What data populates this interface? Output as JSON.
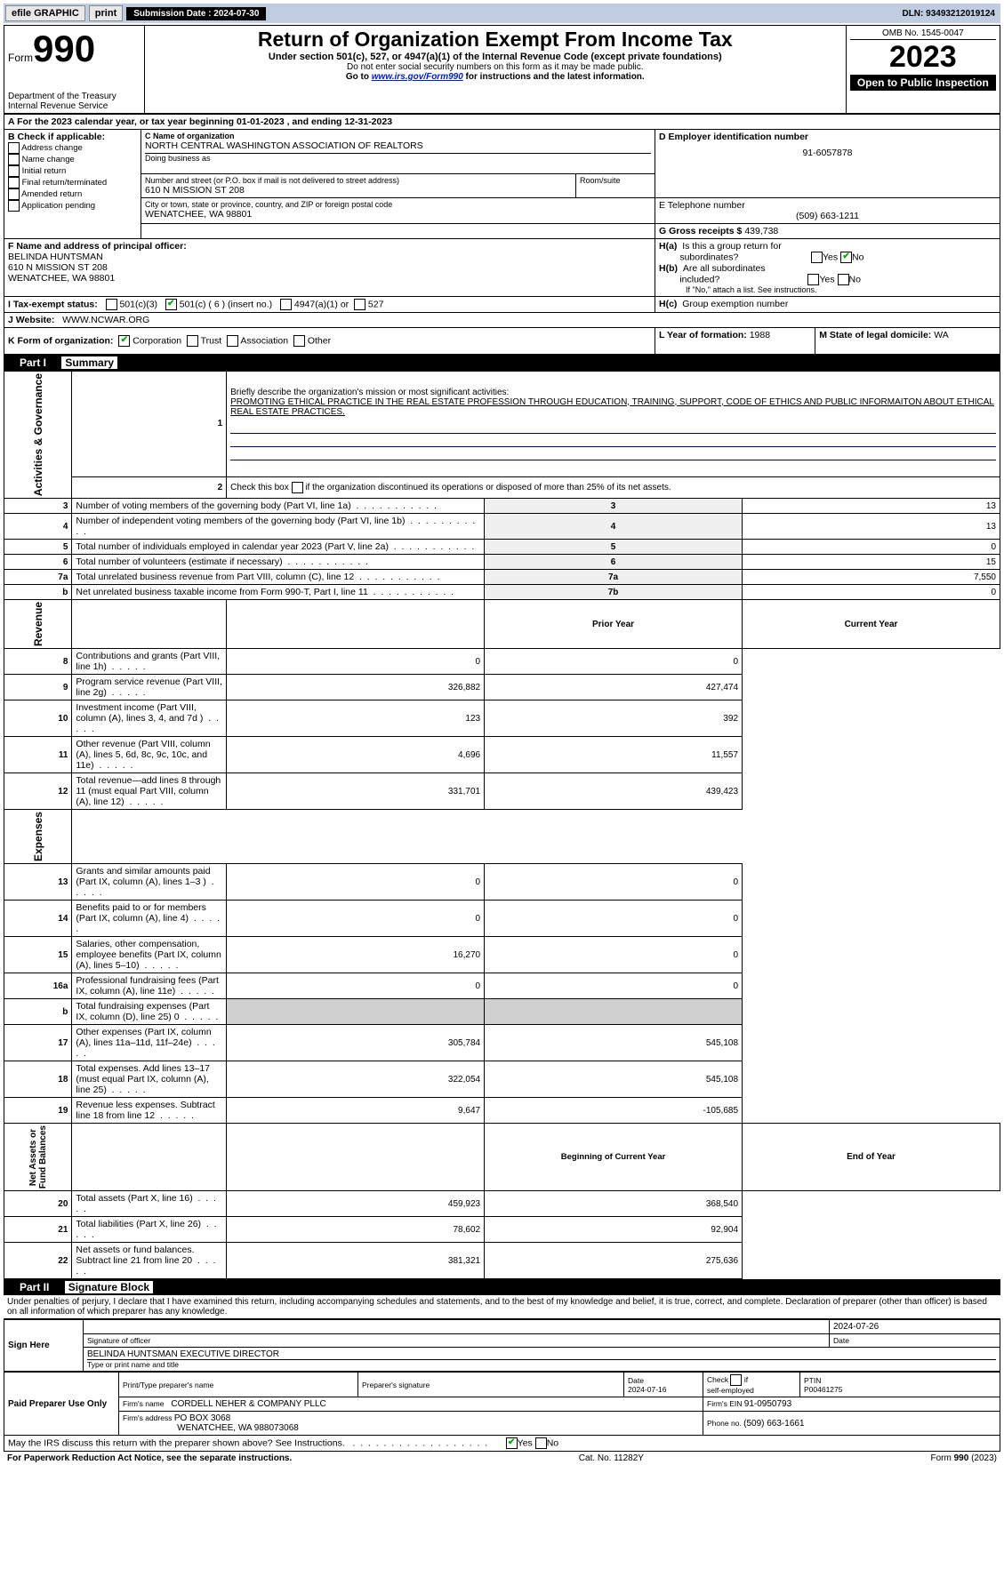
{
  "topbar": {
    "efile": "efile GRAPHIC",
    "print": "print",
    "sub_label": "Submission Date : 2024-07-30",
    "dln": "DLN: 93493212019124"
  },
  "header": {
    "form_small": "Form",
    "form_num": "990",
    "title": "Return of Organization Exempt From Income Tax",
    "subtitle": "Under section 501(c), 527, or 4947(a)(1) of the Internal Revenue Code (except private foundations)",
    "warn": "Do not enter social security numbers on this form as it may be made public.",
    "goto_pre": "Go to ",
    "goto_link": "www.irs.gov/Form990",
    "goto_post": " for instructions and the latest information.",
    "dept": "Department of the Treasury\nInternal Revenue Service",
    "omb": "OMB No. 1545-0047",
    "year": "2023",
    "inspect": "Open to Public Inspection"
  },
  "period": {
    "text": "A For the 2023 calendar year, or tax year beginning 01-01-2023    , and ending 12-31-2023"
  },
  "boxB": {
    "label": "B Check if applicable:",
    "items": [
      "Address change",
      "Name change",
      "Initial return",
      "Final return/terminated",
      "Amended return",
      "Application pending"
    ]
  },
  "boxC": {
    "name_label": "C Name of organization",
    "name": "NORTH CENTRAL WASHINGTON ASSOCIATION OF REALTORS",
    "dba_label": "Doing business as",
    "addr_label": "Number and street (or P.O. box if mail is not delivered to street address)",
    "addr": "610 N MISSION ST 208",
    "room_label": "Room/suite",
    "city_label": "City or town, state or province, country, and ZIP or foreign postal code",
    "city": "WENATCHEE, WA  98801"
  },
  "boxD": {
    "label": "D Employer identification number",
    "val": "91-6057878"
  },
  "boxE": {
    "label": "E Telephone number",
    "val": "(509) 663-1211"
  },
  "boxG": {
    "label": "G Gross receipts $",
    "val": "439,738"
  },
  "boxF": {
    "label": "F Name and address of principal officer:",
    "name": "BELINDA HUNTSMAN",
    "addr": "610 N MISSION ST 208",
    "city": "WENATCHEE, WA  98801"
  },
  "boxH": {
    "ha": "H(a)  Is this a group return for subordinates?",
    "hb": "H(b)  Are all subordinates included?",
    "hb_note": "If \"No,\" attach a list. See instructions.",
    "hc": "H(c)  Group exemption number ",
    "yes": "Yes",
    "no": "No"
  },
  "boxI": {
    "label": "I   Tax-exempt status:",
    "o1": "501(c)(3)",
    "o2": "501(c) ( 6 ) (insert no.)",
    "o3": "4947(a)(1) or",
    "o4": "527"
  },
  "boxJ": {
    "label": "J   Website: ",
    "val": "WWW.NCWAR.ORG"
  },
  "boxK": {
    "label": "K Form of organization:",
    "o1": "Corporation",
    "o2": "Trust",
    "o3": "Association",
    "o4": "Other"
  },
  "boxL": {
    "label": "L Year of formation: ",
    "val": "1988"
  },
  "boxM": {
    "label": "M State of legal domicile: ",
    "val": "WA"
  },
  "part1": {
    "label": "Part I",
    "title": "Summary"
  },
  "mission": {
    "q": "Briefly describe the organization's mission or most significant activities:",
    "text": "PROMOTING ETHICAL PRACTICE IN THE REAL ESTATE PROFESSION THROUGH EDUCATION, TRAINING, SUPPORT, CODE OF ETHICS AND PUBLIC INFORMAITON ABOUT ETHICAL REAL ESTATE PRACTICES."
  },
  "line2": "Check this box       if the organization discontinued its operations or disposed of more than 25% of its net assets.",
  "summary_top": [
    {
      "n": "3",
      "d": "Number of voting members of the governing body (Part VI, line 1a)",
      "i": "3",
      "v": "13"
    },
    {
      "n": "4",
      "d": "Number of independent voting members of the governing body (Part VI, line 1b)",
      "i": "4",
      "v": "13"
    },
    {
      "n": "5",
      "d": "Total number of individuals employed in calendar year 2023 (Part V, line 2a)",
      "i": "5",
      "v": "0"
    },
    {
      "n": "6",
      "d": "Total number of volunteers (estimate if necessary)",
      "i": "6",
      "v": "15"
    },
    {
      "n": "7a",
      "d": "Total unrelated business revenue from Part VIII, column (C), line 12",
      "i": "7a",
      "v": "7,550"
    },
    {
      "n": "b",
      "d": "Net unrelated business taxable income from Form 990-T, Part I, line 11",
      "i": "7b",
      "v": "0"
    }
  ],
  "col_headers": {
    "prior": "Prior Year",
    "current": "Current Year",
    "begin": "Beginning of Current Year",
    "end": "End of Year"
  },
  "side_labels": {
    "ag": "Activities & Governance",
    "rev": "Revenue",
    "exp": "Expenses",
    "net": "Net Assets or\nFund Balances"
  },
  "revenue": [
    {
      "n": "8",
      "d": "Contributions and grants (Part VIII, line 1h)",
      "p": "0",
      "c": "0"
    },
    {
      "n": "9",
      "d": "Program service revenue (Part VIII, line 2g)",
      "p": "326,882",
      "c": "427,474"
    },
    {
      "n": "10",
      "d": "Investment income (Part VIII, column (A), lines 3, 4, and 7d )",
      "p": "123",
      "c": "392"
    },
    {
      "n": "11",
      "d": "Other revenue (Part VIII, column (A), lines 5, 6d, 8c, 9c, 10c, and 11e)",
      "p": "4,696",
      "c": "11,557"
    },
    {
      "n": "12",
      "d": "Total revenue—add lines 8 through 11 (must equal Part VIII, column (A), line 12)",
      "p": "331,701",
      "c": "439,423"
    }
  ],
  "expenses": [
    {
      "n": "13",
      "d": "Grants and similar amounts paid (Part IX, column (A), lines 1–3 )",
      "p": "0",
      "c": "0"
    },
    {
      "n": "14",
      "d": "Benefits paid to or for members (Part IX, column (A), line 4)",
      "p": "0",
      "c": "0"
    },
    {
      "n": "15",
      "d": "Salaries, other compensation, employee benefits (Part IX, column (A), lines 5–10)",
      "p": "16,270",
      "c": "0"
    },
    {
      "n": "16a",
      "d": "Professional fundraising fees (Part IX, column (A), line 11e)",
      "p": "0",
      "c": "0"
    },
    {
      "n": "b",
      "d": "Total fundraising expenses (Part IX, column (D), line 25) 0",
      "p": "",
      "c": "",
      "shade": true
    },
    {
      "n": "17",
      "d": "Other expenses (Part IX, column (A), lines 11a–11d, 11f–24e)",
      "p": "305,784",
      "c": "545,108"
    },
    {
      "n": "18",
      "d": "Total expenses. Add lines 13–17 (must equal Part IX, column (A), line 25)",
      "p": "322,054",
      "c": "545,108"
    },
    {
      "n": "19",
      "d": "Revenue less expenses. Subtract line 18 from line 12",
      "p": "9,647",
      "c": "-105,685"
    }
  ],
  "net_assets": [
    {
      "n": "20",
      "d": "Total assets (Part X, line 16)",
      "p": "459,923",
      "c": "368,540"
    },
    {
      "n": "21",
      "d": "Total liabilities (Part X, line 26)",
      "p": "78,602",
      "c": "92,904"
    },
    {
      "n": "22",
      "d": "Net assets or fund balances. Subtract line 21 from line 20",
      "p": "381,321",
      "c": "275,636"
    }
  ],
  "part2": {
    "label": "Part II",
    "title": "Signature Block"
  },
  "penalties": "Under penalties of perjury, I declare that I have examined this return, including accompanying schedules and statements, and to the best of my knowledge and belief, it is true, correct, and complete. Declaration of preparer (other than officer) is based on all information of which preparer has any knowledge.",
  "sign": {
    "here": "Sign Here",
    "sig_label": "Signature of officer",
    "date_label": "Date",
    "date_val": "2024-07-26",
    "name": "BELINDA HUNTSMAN  EXECUTIVE DIRECTOR",
    "name_label": "Type or print name and title"
  },
  "prep": {
    "label": "Paid Preparer Use Only",
    "h_name": "Print/Type preparer's name",
    "h_sig": "Preparer's signature",
    "h_date": "Date",
    "date_val": "2024-07-16",
    "h_check": "Check         if self-employed",
    "h_ptin": "PTIN",
    "ptin": "P00461275",
    "firm_label": "Firm's name    ",
    "firm": "CORDELL NEHER & COMPANY PLLC",
    "ein_label": "Firm's EIN  ",
    "ein": "91-0950793",
    "addr_label": "Firm's address ",
    "addr1": "PO BOX 3068",
    "addr2": "WENATCHEE, WA  988073068",
    "phone_label": "Phone no. ",
    "phone": "(509) 663-1661"
  },
  "discuss": "May the IRS discuss this return with the preparer shown above? See Instructions.",
  "footer": {
    "left": "For Paperwork Reduction Act Notice, see the separate instructions.",
    "mid": "Cat. No. 11282Y",
    "right": "Form 990 (2023)"
  }
}
